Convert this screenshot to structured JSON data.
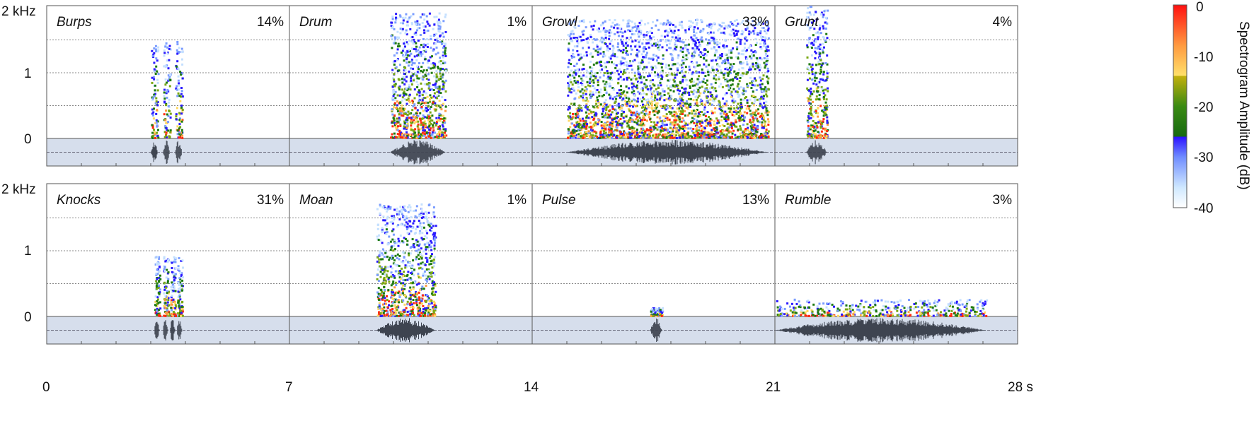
{
  "chart_data": {
    "type": "heatmap",
    "kind": "spectrogram grid with waveforms",
    "xlabel_unit": "s",
    "x_ticks": [
      "0",
      "7",
      "14",
      "21",
      "28 s"
    ],
    "y_ticks": [
      "2 kHz",
      "1",
      "0"
    ],
    "ylim_khz": [
      0,
      2
    ],
    "grid": "dotted horizontal at 0.5, 1, 1.5 kHz",
    "colorbar": {
      "label": "Spectrogram Amplitude (dB)",
      "ticks": [
        "0",
        "-10",
        "-20",
        "-30",
        "-40"
      ],
      "range_db": [
        -40,
        0
      ],
      "colors": [
        "#ffffff",
        "#8cb4ff",
        "#2a1aff",
        "#1a6e0e",
        "#9ab410",
        "#ffe066",
        "#ff9a40",
        "#ff1a10"
      ]
    },
    "panels": [
      {
        "name": "Burps",
        "percent": "14%",
        "row": 0,
        "time_start_s": 3.0,
        "time_end_s": 4.0,
        "max_freq_khz": 1.5,
        "bursts": [
          [
            3.0,
            3.2
          ],
          [
            3.35,
            3.55
          ],
          [
            3.7,
            3.9
          ]
        ]
      },
      {
        "name": "Drum",
        "percent": "1%",
        "row": 0,
        "time_start_s": 9.9,
        "time_end_s": 11.5,
        "max_freq_khz": 1.9,
        "bursts": [
          [
            9.9,
            11.5
          ]
        ]
      },
      {
        "name": "Growl",
        "percent": "33%",
        "row": 0,
        "time_start_s": 15.0,
        "time_end_s": 20.8,
        "max_freq_khz": 1.8,
        "bursts": [
          [
            15.0,
            20.8
          ]
        ]
      },
      {
        "name": "Grunt",
        "percent": "4%",
        "row": 0,
        "time_start_s": 21.9,
        "time_end_s": 22.5,
        "max_freq_khz": 2.0,
        "bursts": [
          [
            21.9,
            22.5
          ]
        ]
      },
      {
        "name": "Knocks",
        "percent": "31%",
        "row": 1,
        "time_start_s": 3.1,
        "time_end_s": 4.0,
        "max_freq_khz": 0.9,
        "bursts": [
          [
            3.1,
            3.25
          ],
          [
            3.35,
            3.5
          ],
          [
            3.55,
            3.7
          ],
          [
            3.75,
            3.9
          ]
        ]
      },
      {
        "name": "Moan",
        "percent": "1%",
        "row": 1,
        "time_start_s": 9.5,
        "time_end_s": 11.2,
        "max_freq_khz": 1.7,
        "bursts": [
          [
            9.5,
            11.2
          ]
        ]
      },
      {
        "name": "Pulse",
        "percent": "13%",
        "row": 1,
        "time_start_s": 17.4,
        "time_end_s": 17.75,
        "max_freq_khz": 0.12,
        "bursts": [
          [
            17.4,
            17.75
          ]
        ]
      },
      {
        "name": "Rumble",
        "percent": "3%",
        "row": 1,
        "time_start_s": 21.0,
        "time_end_s": 27.1,
        "max_freq_khz": 0.25,
        "bursts": [
          [
            21.0,
            27.1
          ]
        ]
      }
    ]
  }
}
